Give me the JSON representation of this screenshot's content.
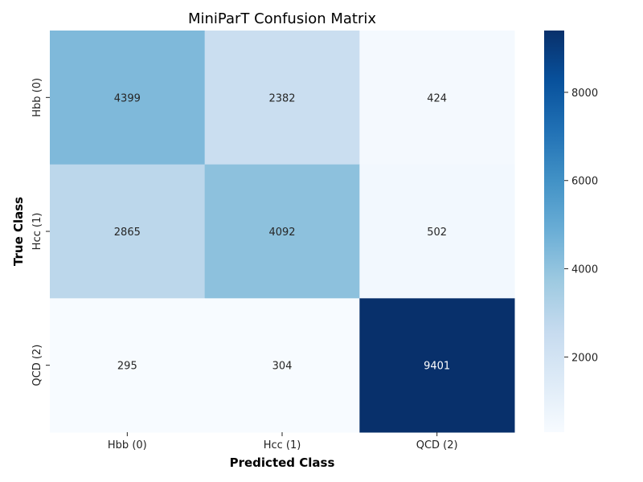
{
  "chart_data": {
    "type": "heatmap",
    "title": "MiniParT Confusion Matrix",
    "xlabel": "Predicted Class",
    "ylabel": "True Class",
    "x_categories": [
      "Hbb (0)",
      "Hcc (1)",
      "QCD (2)"
    ],
    "y_categories": [
      "Hbb (0)",
      "Hcc (1)",
      "QCD (2)"
    ],
    "values": [
      [
        4399,
        2382,
        424
      ],
      [
        2865,
        4092,
        502
      ],
      [
        295,
        304,
        9401
      ]
    ],
    "colormap": "Blues",
    "color_min": 295,
    "color_max": 9401,
    "colorbar_ticks": [
      2000,
      4000,
      6000,
      8000
    ],
    "colors": {
      "low": "#f7fbff",
      "high": "#08306b",
      "text_dark": "#262626",
      "text_light": "#ffffff"
    }
  }
}
